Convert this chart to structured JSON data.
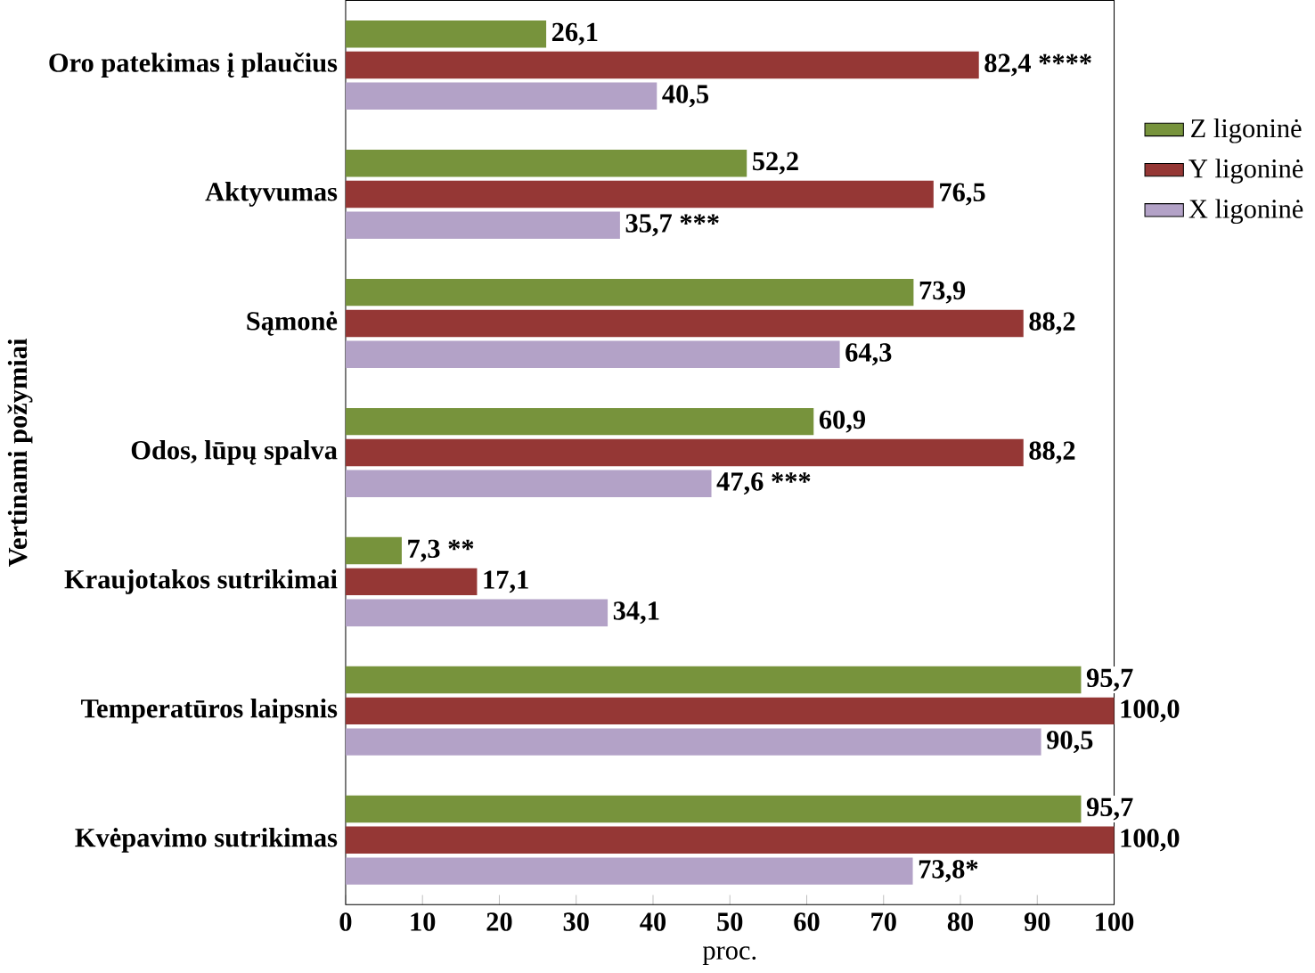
{
  "chart_data": {
    "type": "bar",
    "orientation": "horizontal",
    "xlabel": "proc.",
    "ylabel": "Vertinami požymiai",
    "categories": [
      "Oro patekimas į plaučius",
      "Aktyvumas",
      "Sąmonė",
      "Odos, lūpų spalva",
      "Kraujotakos sutrikimai",
      "Temperatūros laipsnis",
      "Kvėpavimo sutrikimas"
    ],
    "series": [
      {
        "name": "Z ligoninė",
        "color": "#77933c",
        "values": [
          26.1,
          52.2,
          73.9,
          60.9,
          7.3,
          95.7,
          95.7
        ],
        "value_labels": [
          "26,1",
          "52,2",
          "73,9",
          "60,9",
          "7,3 **",
          "95,7",
          "95,7"
        ]
      },
      {
        "name": "Y ligoninė",
        "color": "#953735",
        "values": [
          82.4,
          76.5,
          88.2,
          88.2,
          17.1,
          100.0,
          100.0
        ],
        "value_labels": [
          "82,4 ****",
          "76,5",
          "88,2",
          "88,2",
          "17,1",
          "100,0",
          "100,0"
        ]
      },
      {
        "name": "X ligoninė",
        "color": "#b3a2c7",
        "values": [
          40.5,
          35.7,
          64.3,
          47.6,
          34.1,
          90.5,
          73.8
        ],
        "value_labels": [
          "40,5",
          "35,7 ***",
          "64,3",
          "47,6 ***",
          "34,1",
          "90,5",
          "73,8*"
        ]
      }
    ],
    "xlim": [
      0,
      100
    ],
    "xticks": [
      0,
      10,
      20,
      30,
      40,
      50,
      60,
      70,
      80,
      90,
      100
    ],
    "legend": "right"
  }
}
